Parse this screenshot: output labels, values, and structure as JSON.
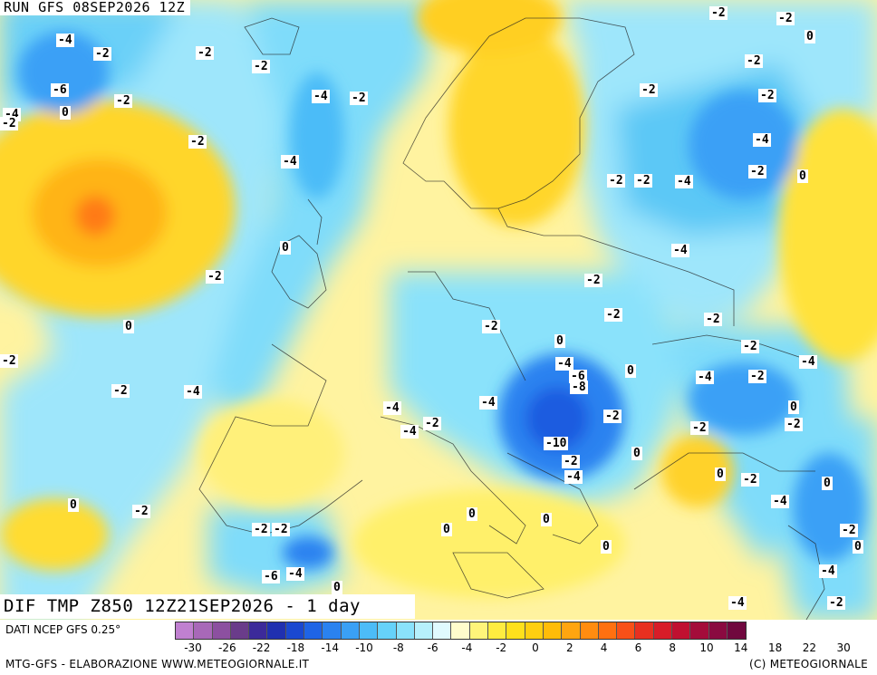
{
  "header": {
    "run_title": "RUN GFS 08SEP2026 12Z"
  },
  "map": {
    "title": "DIF TMP Z850 12Z21SEP2026 - 1 day",
    "contour_labels": [
      "-4",
      "-2",
      "-2",
      "-2",
      "-2",
      "-2",
      "-6",
      "-2",
      "0",
      "-4",
      "-2",
      "-4",
      "-2",
      "0",
      "-2",
      "-2",
      "-4",
      "-2",
      "-4",
      "-2",
      "-2",
      "0",
      "-2",
      "-2",
      "-4",
      "-4",
      "0",
      "-2",
      "-2",
      "-2",
      "-2",
      "-2",
      "0",
      "-2",
      "0",
      "-4",
      "-2",
      "-2",
      "-4",
      "-4",
      "-6",
      "0",
      "-4",
      "-8",
      "-2",
      "-4",
      "-4",
      "-2",
      "0",
      "-2",
      "-2",
      "-10",
      "-2",
      "-4",
      "0",
      "-2",
      "0",
      "-2",
      "-4",
      "0",
      "-4",
      "-2",
      "-2",
      "-2",
      "0",
      "0",
      "0",
      "0",
      "-2",
      "0",
      "-6",
      "-4",
      "0",
      "-4",
      "-2",
      "0",
      "-4"
    ]
  },
  "legend": {
    "source": "DATI NCEP GFS 0.25°",
    "colors": [
      "#c080d0",
      "#a868b8",
      "#8c50a0",
      "#6a3c8a",
      "#3c2a9a",
      "#2030b0",
      "#1a48d0",
      "#1e64e6",
      "#2a82f0",
      "#3aa0f6",
      "#4cbcf8",
      "#66d2fa",
      "#8ae2fb",
      "#b6f0fc",
      "#e0fafe",
      "#fffccc",
      "#fff47a",
      "#ffec40",
      "#ffe01c",
      "#ffcf10",
      "#ffbc08",
      "#ffa510",
      "#ff8c10",
      "#ff7010",
      "#f85018",
      "#e83020",
      "#d81c28",
      "#c01030",
      "#a40c3a",
      "#8a0a40",
      "#70083e"
    ],
    "ticks": [
      "-30",
      "-26",
      "-22",
      "-18",
      "-14",
      "-10",
      "-8",
      "-6",
      "-4",
      "-2",
      "0",
      "2",
      "4",
      "6",
      "8",
      "10",
      "14",
      "18",
      "22",
      "30"
    ],
    "credit": "MTG-GFS - ELABORAZIONE WWW.METEOGIORNALE.IT",
    "copyright": "(C) METEOGIORNALE"
  }
}
